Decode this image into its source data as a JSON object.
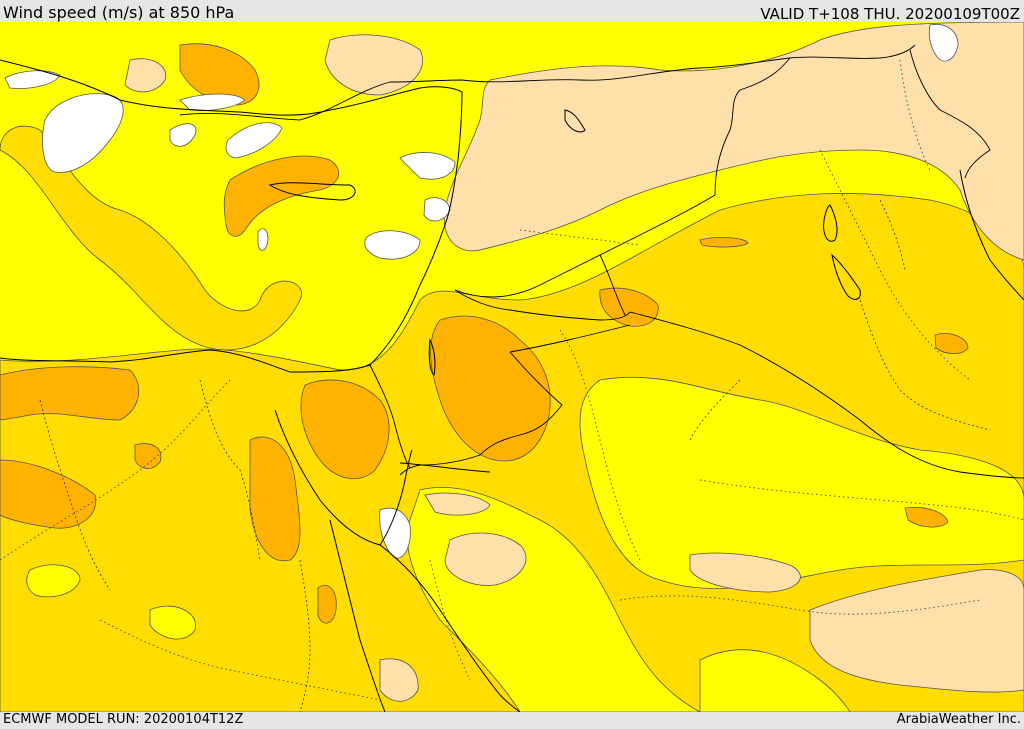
{
  "header": {
    "title": "Wind speed (m/s) at 850 hPa",
    "valid": "VALID T+108 THU. 20200109T00Z"
  },
  "footer": {
    "model_run": "ECMWF MODEL RUN: 20200104T12Z",
    "credit": "ArabiaWeather Inc."
  },
  "map": {
    "variable": "wind speed",
    "level": "850 hPa",
    "fill_colors": {
      "calm": "#ffffff",
      "light": "#ffdfaa",
      "moderate": "#ffff00",
      "fresh": "#ffdd00",
      "strong": "#ffb300",
      "stronger": "#f5a300"
    },
    "line_colors": {
      "contour": "#555555",
      "coastline": "#000000",
      "border": "#000000"
    }
  }
}
